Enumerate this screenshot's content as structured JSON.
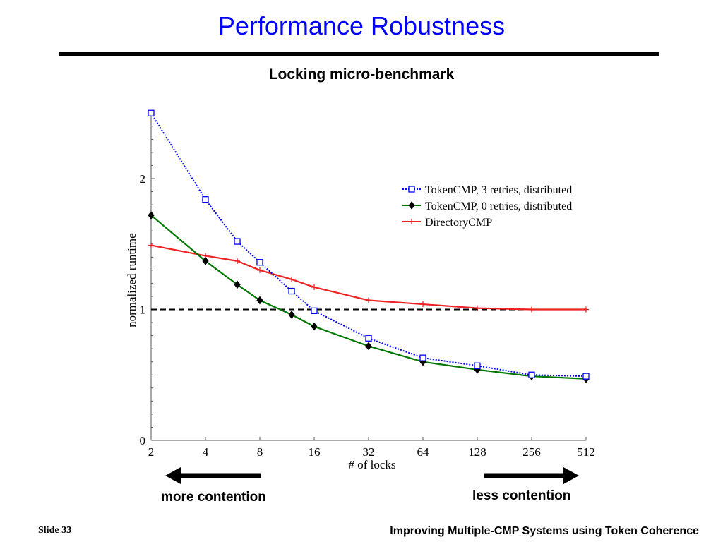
{
  "slide": {
    "title": "Performance Robustness",
    "subtitle": "Locking micro-benchmark",
    "left_arrow_label": "more contention",
    "right_arrow_label": "less contention",
    "footer_left": "Slide 33",
    "footer_right": "Improving Multiple-CMP Systems using Token Coherence",
    "title_color": "#0000ff"
  },
  "chart_data": {
    "type": "line",
    "title": "",
    "xlabel": "# of locks",
    "ylabel": "normalized runtime",
    "x_scale": "log2",
    "x_ticks": [
      2,
      4,
      8,
      16,
      32,
      64,
      128,
      256,
      512
    ],
    "y_ticks": [
      0,
      1,
      2
    ],
    "xlim": [
      2,
      512
    ],
    "ylim": [
      0,
      2.5
    ],
    "reference_line": {
      "y": 1,
      "style": "dashed",
      "color": "#000000"
    },
    "legend": {
      "placement": "top-right"
    },
    "series": [
      {
        "name": "TokenCMP, 3 retries, distributed",
        "color": "#0000ff",
        "line_style": "dotted",
        "marker": "square",
        "x": [
          2,
          4,
          6,
          8,
          12,
          16,
          32,
          64,
          128,
          256,
          512
        ],
        "y": [
          2.5,
          1.84,
          1.52,
          1.36,
          1.14,
          0.99,
          0.78,
          0.63,
          0.57,
          0.5,
          0.49
        ]
      },
      {
        "name": "TokenCMP, 0 retries, distributed",
        "color": "#007700",
        "line_style": "solid",
        "marker": "diamond",
        "x": [
          2,
          4,
          6,
          8,
          12,
          16,
          32,
          64,
          128,
          256,
          512
        ],
        "y": [
          1.72,
          1.37,
          1.19,
          1.07,
          0.96,
          0.87,
          0.72,
          0.6,
          0.54,
          0.49,
          0.47
        ]
      },
      {
        "name": "DirectoryCMP",
        "color": "#ee2222",
        "line_style": "solid",
        "marker": "plus",
        "x": [
          2,
          4,
          6,
          8,
          12,
          16,
          32,
          64,
          128,
          256,
          512
        ],
        "y": [
          1.49,
          1.41,
          1.37,
          1.3,
          1.23,
          1.17,
          1.07,
          1.04,
          1.01,
          1.0,
          1.0
        ]
      }
    ]
  }
}
